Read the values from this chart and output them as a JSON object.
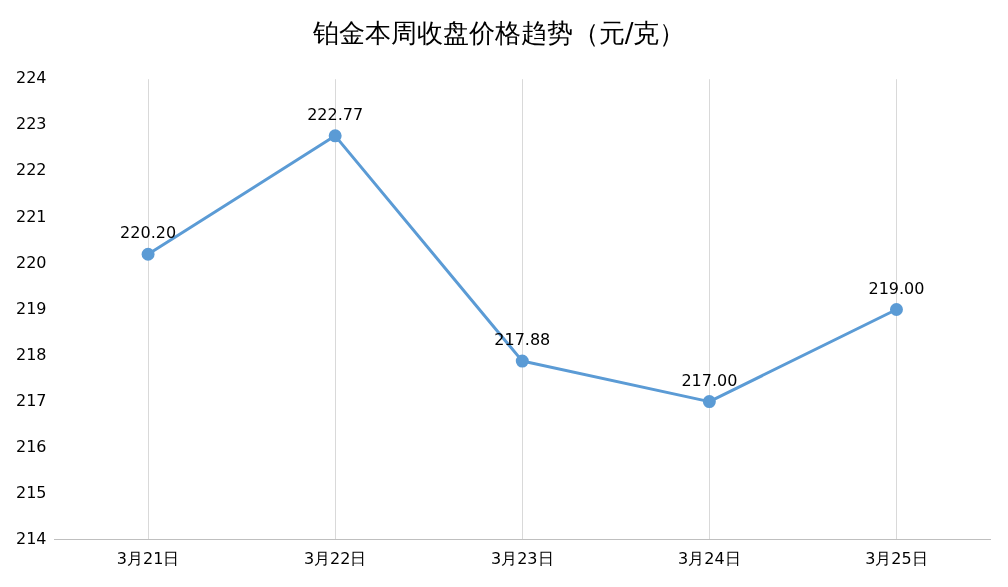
{
  "chart_data": {
    "type": "line",
    "title": "铂金本周收盘价格趋势（元/克）",
    "categories": [
      "3月21日",
      "3月22日",
      "3月23日",
      "3月24日",
      "3月25日"
    ],
    "series": [
      {
        "color": "#5b9bd5",
        "values": [
          220.2,
          222.77,
          217.88,
          217.0,
          219.0
        ]
      }
    ],
    "ylim": [
      214,
      224
    ],
    "yticks": [
      214,
      215,
      216,
      217,
      218,
      219,
      220,
      221,
      222,
      223,
      224
    ],
    "grid": "x",
    "legend": false,
    "marker": "circle",
    "line_style": "solid",
    "value_labels": [
      "220.20",
      "222.77",
      "217.88",
      "217.00",
      "219.00"
    ]
  }
}
